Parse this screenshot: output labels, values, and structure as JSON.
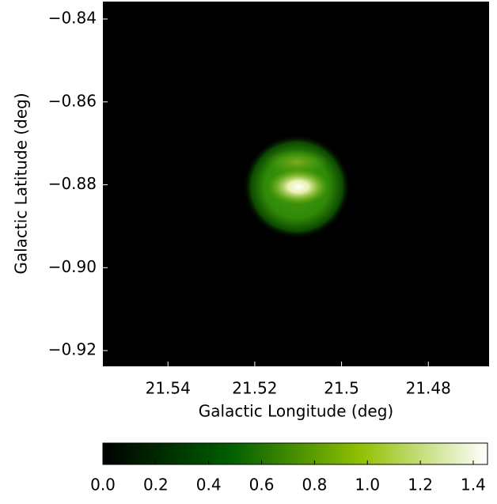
{
  "chart_data": {
    "type": "image",
    "xlabel": "Galactic Longitude (deg)",
    "ylabel": "Galactic Latitude (deg)",
    "xlim": [
      21.555,
      21.466
    ],
    "ylim": [
      -0.9238,
      -0.8358
    ],
    "xticks": [
      21.54,
      21.52,
      21.5,
      21.48
    ],
    "yticks": [
      {
        "value": -0.84,
        "label": "−0.84"
      },
      {
        "value": -0.86,
        "label": "−0.86"
      },
      {
        "value": -0.88,
        "label": "−0.88"
      },
      {
        "value": -0.9,
        "label": "−0.90"
      },
      {
        "value": -0.92,
        "label": "−0.92"
      }
    ],
    "colorbar": {
      "clim": [
        0,
        1.454
      ],
      "ticks": [
        {
          "value": 0,
          "label": "0.0"
        },
        0.2,
        0.4,
        0.6,
        0.8,
        {
          "value": 1,
          "label": "1.0"
        },
        1.2,
        1.4
      ],
      "colormap": [
        "#000000",
        "#005f00",
        "#8fbf00",
        "#ffffff"
      ]
    }
  }
}
